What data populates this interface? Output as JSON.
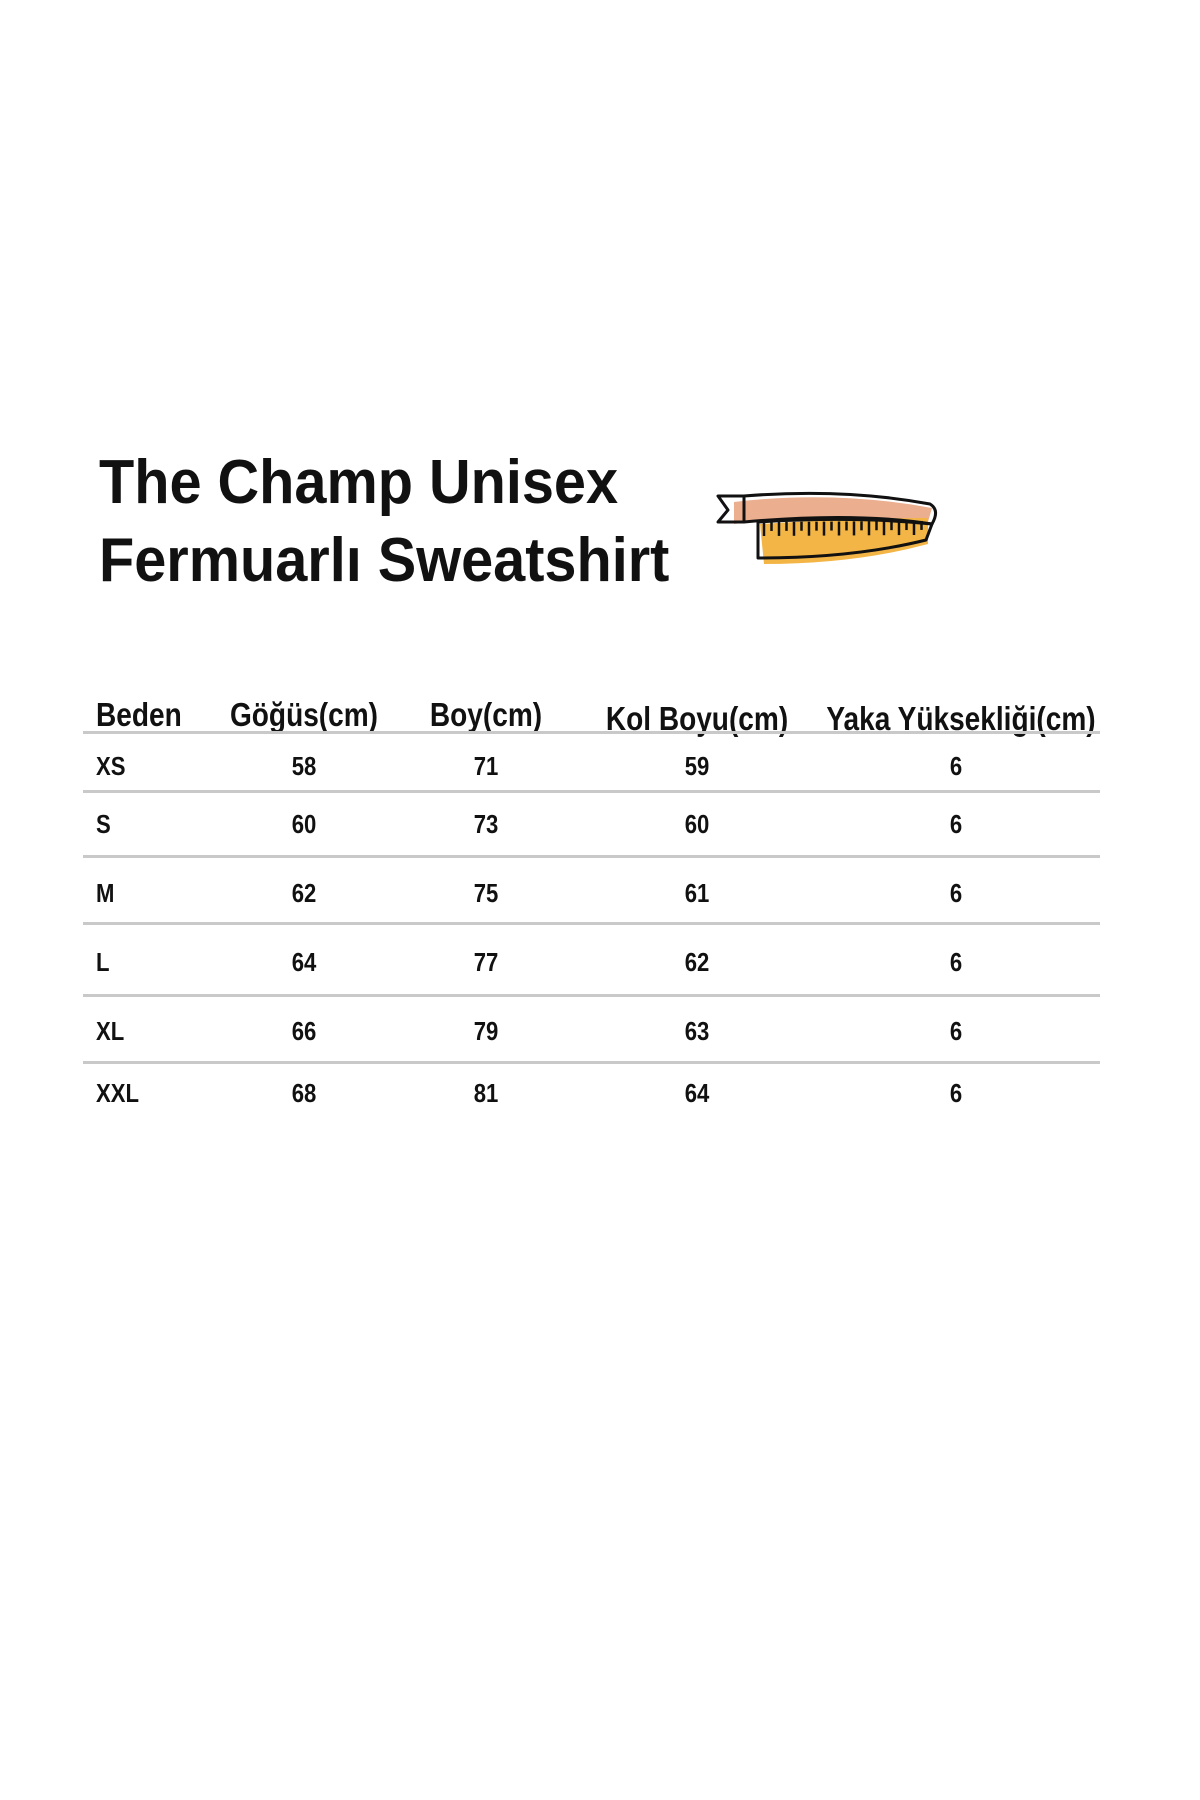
{
  "title": {
    "line1": "The Champ Unisex",
    "line2": "Fermuarlı Sweatshirt"
  },
  "icon": "measuring-tape-icon",
  "colors": {
    "tape_top": "#e8a07a",
    "tape_bottom": "#f3b545",
    "text": "#111111",
    "rule": "#c9c9c9"
  },
  "table": {
    "headers": [
      "Beden",
      "Göğüs(cm)",
      "Boy(cm)",
      "Kol Boyu(cm)",
      "Yaka Yüksekliği(cm)"
    ],
    "rows": [
      [
        "XS",
        "58",
        "71",
        "59",
        "6"
      ],
      [
        "S",
        "60",
        "73",
        "60",
        "6"
      ],
      [
        "M",
        "62",
        "75",
        "61",
        "6"
      ],
      [
        "L",
        "64",
        "77",
        "62",
        "6"
      ],
      [
        "XL",
        "66",
        "79",
        "63",
        "6"
      ],
      [
        "XXL",
        "68",
        "81",
        "64",
        "6"
      ]
    ]
  }
}
